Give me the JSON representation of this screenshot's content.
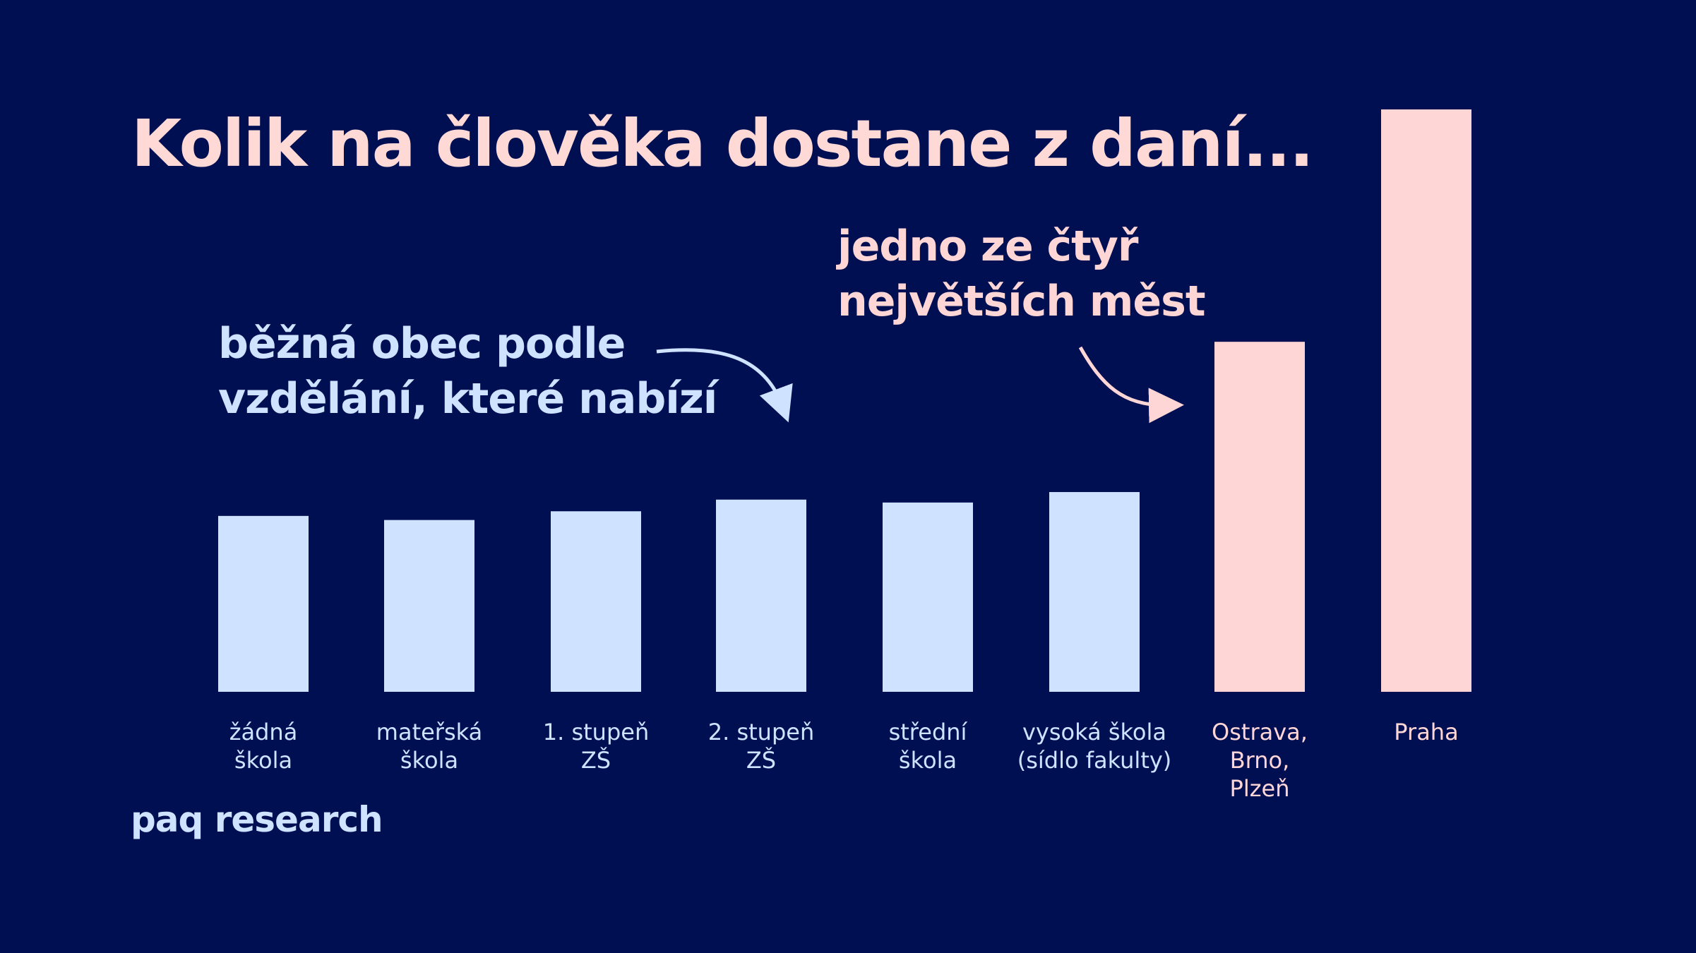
{
  "title": "Kolik na člověka dostane z daní...",
  "annotations": {
    "common": [
      "běžná obec podle",
      "vzdělání, které nabízí"
    ],
    "cities": [
      "jedno ze čtyř",
      "největších měst"
    ]
  },
  "logo": "paq research",
  "colors": {
    "background": "#000f52",
    "common": "#cfe2ff",
    "cities": "#ffd6d6"
  },
  "chart_data": {
    "type": "bar",
    "title": "Kolik na člověka dostane z daní...",
    "categories": [
      "žádná škola",
      "mateřská škola",
      "1. stupeň ZŠ",
      "2. stupeň ZŠ",
      "střední škola",
      "vysoká škola (sídlo fakulty)",
      "Ostrava, Brno, Plzeň",
      "Praha"
    ],
    "category_lines": [
      [
        "žádná",
        "škola"
      ],
      [
        "mateřská",
        "škola"
      ],
      [
        "1. stupeň",
        "ZŠ"
      ],
      [
        "2. stupeň",
        "ZŠ"
      ],
      [
        "střední",
        "škola"
      ],
      [
        "vysoká škola",
        "(sídlo fakulty)"
      ],
      [
        "Ostrava,",
        "Brno,",
        "Plzeň"
      ],
      [
        "Praha"
      ]
    ],
    "values_relative_to_praha": [
      30.2,
      29.5,
      31.0,
      33.0,
      32.5,
      34.3,
      60.1,
      100
    ],
    "groups": [
      "common",
      "common",
      "common",
      "common",
      "common",
      "common",
      "cities",
      "cities"
    ],
    "xlabel": "",
    "ylabel": "",
    "grid": false,
    "axes_shown": false
  }
}
